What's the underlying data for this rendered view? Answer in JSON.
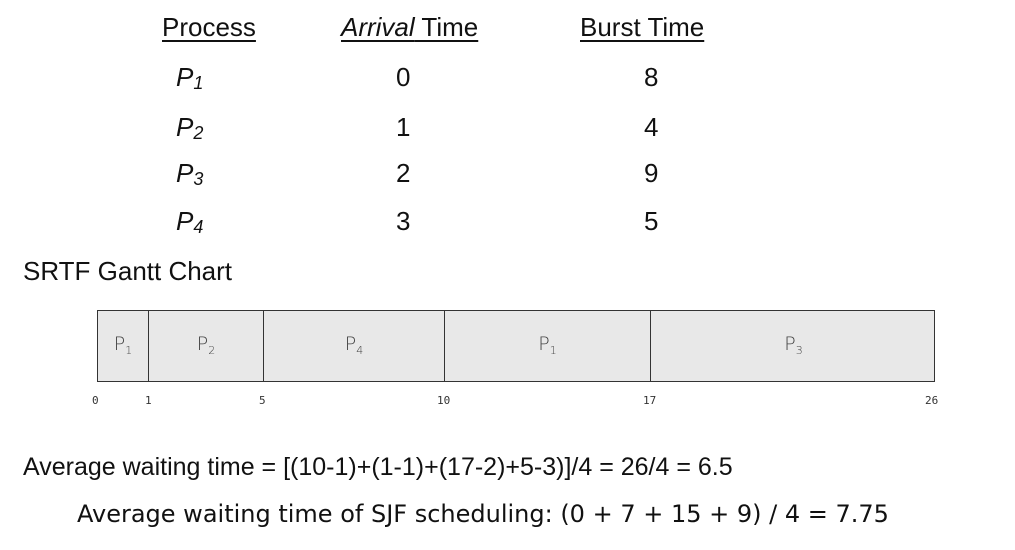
{
  "table": {
    "headers": {
      "process": "Process",
      "arrival_em": "Arrival",
      "arrival_rest": " Time",
      "burst": "Burst Time"
    },
    "rows": [
      {
        "p": "P",
        "sub": "1",
        "arrival": "0",
        "burst": "8"
      },
      {
        "p": "P",
        "sub": "2",
        "arrival": "1",
        "burst": "4"
      },
      {
        "p": "P",
        "sub": "3",
        "arrival": "2",
        "burst": "9"
      },
      {
        "p": "P",
        "sub": "4",
        "arrival": "3",
        "burst": "5"
      }
    ]
  },
  "gantt": {
    "title": "SRTF Gantt Chart",
    "segments": [
      {
        "p": "P",
        "sub": "1",
        "start": "0",
        "end": "1"
      },
      {
        "p": "P",
        "sub": "2",
        "start": "1",
        "end": "5"
      },
      {
        "p": "P",
        "sub": "4",
        "start": "5",
        "end": "10"
      },
      {
        "p": "P",
        "sub": "1",
        "start": "10",
        "end": "17"
      },
      {
        "p": "P",
        "sub": "3",
        "start": "17",
        "end": "26"
      }
    ],
    "ticks": [
      "0",
      "1",
      "5",
      "10",
      "17",
      "26"
    ],
    "box_color": "#e8e8e8"
  },
  "results": {
    "srtf_avg": "Average waiting time = [(10-1)+(1-1)+(17-2)+5-3)]/4 = 26/4 = 6.5",
    "sjf_avg": "Average waiting time of SJF scheduling: (0 + 7 + 15 + 9) / 4 = 7.75"
  }
}
